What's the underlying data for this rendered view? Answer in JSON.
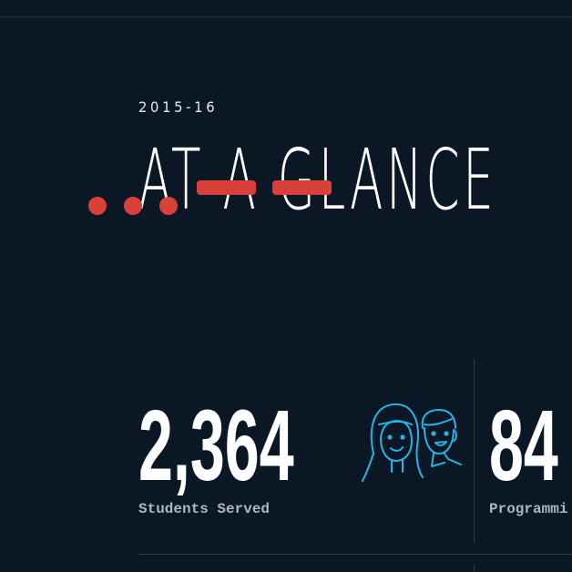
{
  "header": {
    "year": "2015-16",
    "title": "AT A GLANCE"
  },
  "stats": [
    {
      "value": "2,364",
      "label": "Students Served",
      "icon": "students-icon"
    },
    {
      "value": "84",
      "label": "Programmi"
    }
  ],
  "colors": {
    "background": "#0b1724",
    "accent": "#d9403a",
    "icon": "#23b5e8",
    "text": "#ffffff",
    "label": "#aeb6c1"
  }
}
